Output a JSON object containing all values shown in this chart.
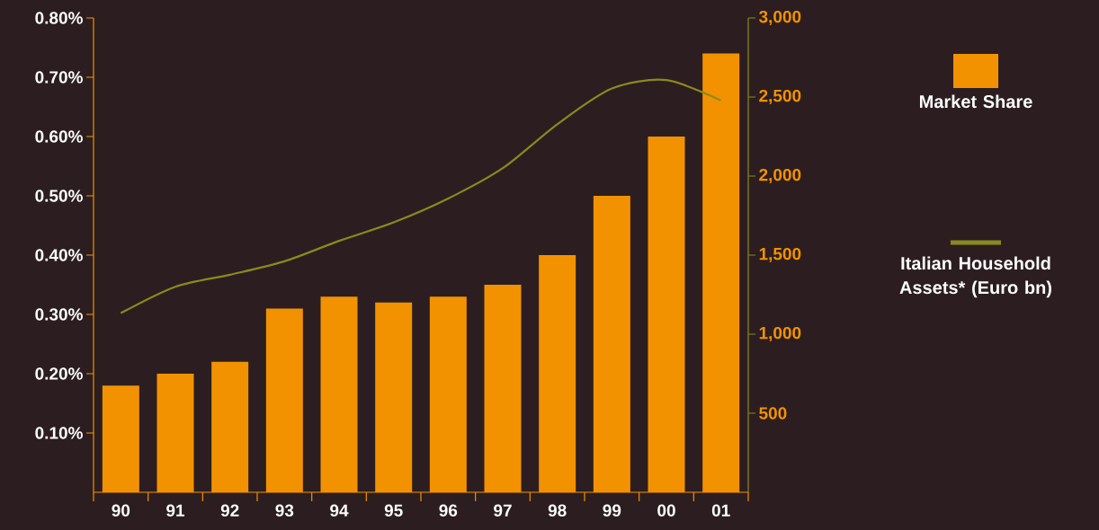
{
  "chart_data": {
    "type": "bar",
    "categories": [
      "90",
      "91",
      "92",
      "93",
      "94",
      "95",
      "96",
      "97",
      "98",
      "99",
      "00",
      "01"
    ],
    "series": [
      {
        "name": "Market Share",
        "color": "#f39200",
        "values": [
          0.18,
          0.2,
          0.22,
          0.31,
          0.33,
          0.32,
          0.33,
          0.35,
          0.4,
          0.5,
          0.6,
          0.74
        ]
      },
      {
        "name": "Italian Household Assets* (Euro bn)",
        "type": "line",
        "axis": "y2",
        "color": "#8a8a1e",
        "values": [
          1133,
          1300,
          1376,
          1461,
          1590,
          1707,
          1858,
          2050,
          2328,
          2554,
          2607,
          2478
        ]
      }
    ],
    "ylim": [
      0,
      0.8
    ],
    "yticks": [
      {
        "value": 0.1,
        "label": "0.10%"
      },
      {
        "value": 0.2,
        "label": "0.20%"
      },
      {
        "value": 0.3,
        "label": "0.30%"
      },
      {
        "value": 0.4,
        "label": "0.40%"
      },
      {
        "value": 0.5,
        "label": "0.50%"
      },
      {
        "value": 0.6,
        "label": "0.60%"
      },
      {
        "value": 0.7,
        "label": "0.70%"
      },
      {
        "value": 0.8,
        "label": "0.80%"
      }
    ],
    "y2lim": [
      0,
      3000
    ],
    "y2ticks": [
      500,
      {
        "value": 1000,
        "label": "1,000"
      },
      {
        "value": 1500,
        "label": "1,500"
      },
      {
        "value": 2000,
        "label": "2,000"
      },
      {
        "value": 2500,
        "label": "2,500"
      },
      {
        "value": 3000,
        "label": "3,000"
      }
    ],
    "legend": "right",
    "grid": false
  }
}
